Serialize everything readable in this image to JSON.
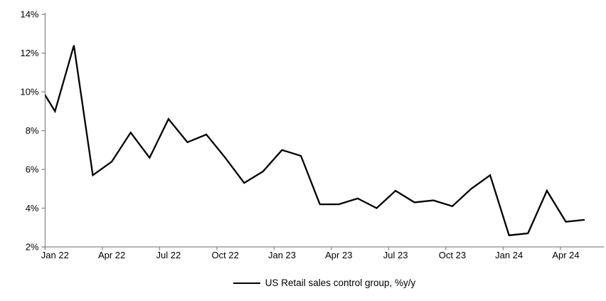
{
  "chart_data": {
    "type": "line",
    "title": "",
    "legend": "US Retail sales control group, %y/y",
    "legend_position": "bottom-center",
    "grid": "off",
    "series_color": "#000000",
    "axis_color": "#8a8a8a",
    "text_color": "#000000",
    "ylim": [
      2,
      14
    ],
    "y_tick_labels": [
      "2%",
      "4%",
      "6%",
      "8%",
      "10%",
      "12%",
      "14%"
    ],
    "y_tick_values": [
      2,
      4,
      6,
      8,
      10,
      12,
      14
    ],
    "x_tick_labels": [
      "Jan 22",
      "Apr 22",
      "Jul 22",
      "Oct 22",
      "Jan 23",
      "Apr 23",
      "Jul 23",
      "Oct 23",
      "Jan 24",
      "Apr 24"
    ],
    "first_point_clipped_at_left_edge": true,
    "x": [
      "Dec 21",
      "Jan 22",
      "Feb 22",
      "Mar 22",
      "Apr 22",
      "May 22",
      "Jun 22",
      "Jul 22",
      "Aug 22",
      "Sep 22",
      "Oct 22",
      "Nov 22",
      "Dec 22",
      "Jan 23",
      "Feb 23",
      "Mar 23",
      "Apr 23",
      "May 23",
      "Jun 23",
      "Jul 23",
      "Aug 23",
      "Sep 23",
      "Oct 23",
      "Nov 23",
      "Dec 23",
      "Jan 24",
      "Feb 24",
      "Mar 24",
      "Apr 24",
      "May 24"
    ],
    "values": [
      10.6,
      9.0,
      12.4,
      5.7,
      6.4,
      7.9,
      6.6,
      8.6,
      7.4,
      7.8,
      6.6,
      5.3,
      5.9,
      7.0,
      6.7,
      4.2,
      4.2,
      4.5,
      4.0,
      4.9,
      4.3,
      4.4,
      4.1,
      5.0,
      5.7,
      2.6,
      2.7,
      4.9,
      3.3,
      3.4
    ]
  }
}
